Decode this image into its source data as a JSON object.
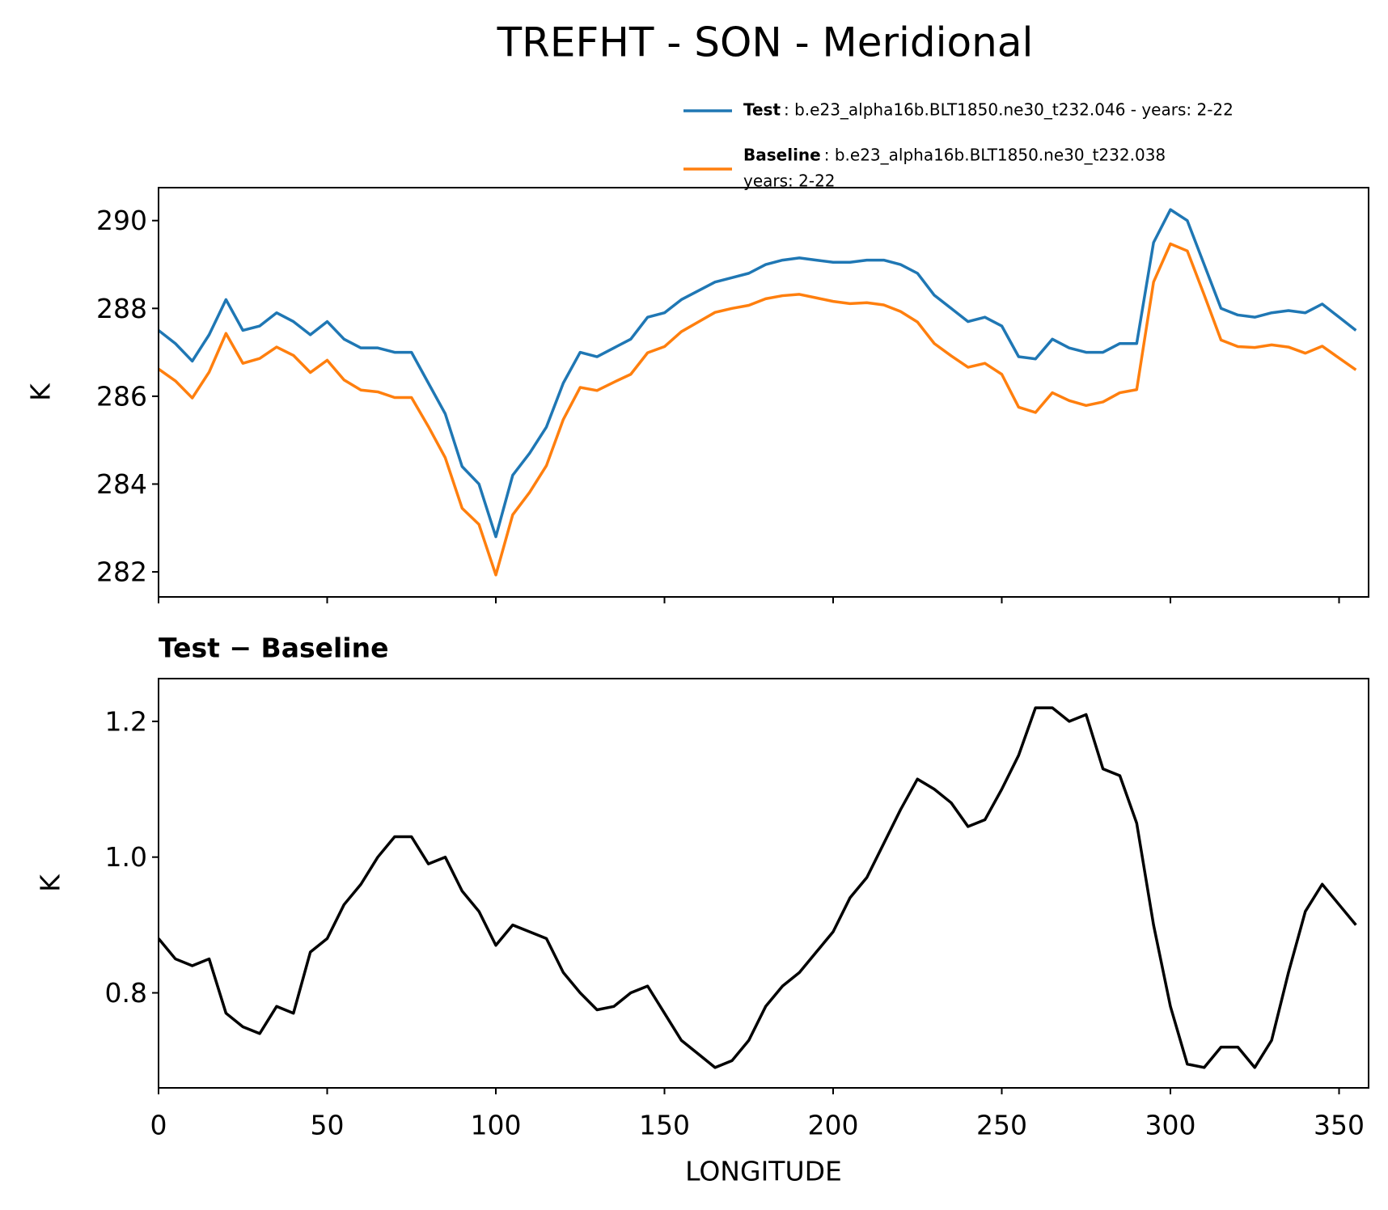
{
  "chart_data": [
    {
      "type": "line",
      "title": "TREFHT - SON - Meridional",
      "ylabel": "K",
      "x": [
        0,
        5,
        10,
        15,
        20,
        25,
        30,
        35,
        40,
        45,
        50,
        55,
        60,
        65,
        70,
        75,
        80,
        85,
        90,
        95,
        100,
        105,
        110,
        115,
        120,
        125,
        130,
        135,
        140,
        145,
        150,
        155,
        160,
        165,
        170,
        175,
        180,
        185,
        190,
        195,
        200,
        205,
        210,
        215,
        220,
        225,
        230,
        235,
        240,
        245,
        250,
        255,
        260,
        265,
        270,
        275,
        280,
        285,
        290,
        295,
        300,
        305,
        310,
        315,
        320,
        325,
        330,
        335,
        340,
        345,
        350,
        355
      ],
      "series": [
        {
          "name": "Test",
          "description": [
            ": b.e23_alpha16b.BLT1850.ne30_t232.046 - years: 2-22"
          ],
          "color": "#1f77b4",
          "values": [
            287.5,
            287.2,
            286.8,
            287.4,
            288.2,
            287.5,
            287.6,
            287.9,
            287.7,
            287.4,
            287.7,
            287.3,
            287.1,
            287.1,
            287.0,
            287.0,
            286.3,
            285.6,
            284.4,
            284.0,
            282.8,
            284.2,
            284.7,
            285.3,
            286.3,
            287.0,
            286.9,
            287.1,
            287.3,
            287.8,
            287.9,
            288.2,
            288.4,
            288.6,
            288.7,
            288.8,
            289.0,
            289.1,
            289.15,
            289.1,
            289.05,
            289.05,
            289.1,
            289.1,
            289.0,
            288.8,
            288.3,
            288.0,
            287.7,
            287.8,
            287.6,
            286.9,
            286.85,
            287.3,
            287.1,
            287.0,
            287.0,
            287.2,
            287.2,
            289.5,
            290.25,
            290.0,
            289.0,
            288.0,
            287.85,
            287.8,
            287.9,
            287.95,
            287.9,
            288.1,
            287.8,
            287.5
          ]
        },
        {
          "name": "Baseline",
          "description": [
            ": b.e23_alpha16b.BLT1850.ne30_t232.038",
            "years: 2-22"
          ],
          "color": "#ff7f0e",
          "values": [
            286.62,
            286.35,
            285.96,
            286.55,
            287.43,
            286.75,
            286.86,
            287.12,
            286.93,
            286.54,
            286.82,
            286.37,
            286.14,
            286.1,
            285.97,
            285.97,
            285.31,
            284.6,
            283.45,
            283.08,
            281.93,
            283.3,
            283.81,
            284.42,
            285.47,
            286.2,
            286.13,
            286.32,
            286.5,
            286.99,
            287.13,
            287.47,
            287.69,
            287.91,
            288.0,
            288.07,
            288.22,
            288.29,
            288.32,
            288.24,
            288.16,
            288.11,
            288.13,
            288.08,
            287.93,
            287.69,
            287.2,
            286.92,
            286.66,
            286.75,
            286.5,
            285.75,
            285.63,
            286.08,
            285.9,
            285.79,
            285.87,
            286.08,
            286.15,
            288.6,
            289.47,
            289.31,
            288.31,
            287.28,
            287.13,
            287.11,
            287.17,
            287.12,
            286.98,
            287.14,
            286.87,
            286.6
          ]
        }
      ],
      "xlim": [
        0,
        358.75
      ],
      "xticks": [
        0,
        50,
        100,
        150,
        200,
        250,
        300,
        350
      ],
      "ylim": [
        281.43,
        290.75
      ],
      "yticks": [
        282,
        284,
        286,
        288,
        290
      ]
    },
    {
      "type": "line",
      "title": "Test − Baseline",
      "xlabel": "LONGITUDE",
      "ylabel": "K",
      "x": [
        0,
        5,
        10,
        15,
        20,
        25,
        30,
        35,
        40,
        45,
        50,
        55,
        60,
        65,
        70,
        75,
        80,
        85,
        90,
        95,
        100,
        105,
        110,
        115,
        120,
        125,
        130,
        135,
        140,
        145,
        150,
        155,
        160,
        165,
        170,
        175,
        180,
        185,
        190,
        195,
        200,
        205,
        210,
        215,
        220,
        225,
        230,
        235,
        240,
        245,
        250,
        255,
        260,
        265,
        270,
        275,
        280,
        285,
        290,
        295,
        300,
        305,
        310,
        315,
        320,
        325,
        330,
        335,
        340,
        345,
        350,
        355
      ],
      "series": [
        {
          "color": "#000000",
          "values": [
            0.88,
            0.85,
            0.84,
            0.85,
            0.77,
            0.75,
            0.74,
            0.78,
            0.77,
            0.86,
            0.88,
            0.93,
            0.96,
            1.0,
            1.03,
            1.03,
            0.99,
            1.0,
            0.95,
            0.92,
            0.87,
            0.9,
            0.89,
            0.88,
            0.83,
            0.8,
            0.775,
            0.78,
            0.8,
            0.81,
            0.77,
            0.73,
            0.71,
            0.69,
            0.7,
            0.73,
            0.78,
            0.81,
            0.83,
            0.86,
            0.89,
            0.94,
            0.97,
            1.02,
            1.07,
            1.115,
            1.1,
            1.08,
            1.045,
            1.055,
            1.1,
            1.15,
            1.22,
            1.22,
            1.2,
            1.21,
            1.13,
            1.12,
            1.05,
            0.9,
            0.78,
            0.695,
            0.69,
            0.72,
            0.72,
            0.69,
            0.73,
            0.83,
            0.92,
            0.96,
            0.93,
            0.9
          ]
        }
      ],
      "xlim": [
        0,
        358.75
      ],
      "xticks": [
        0,
        50,
        100,
        150,
        200,
        250,
        300,
        350
      ],
      "ylim": [
        0.66,
        1.263
      ],
      "yticks": [
        0.8,
        {
          "value": 1,
          "label": "1.0"
        },
        1.2
      ]
    }
  ]
}
